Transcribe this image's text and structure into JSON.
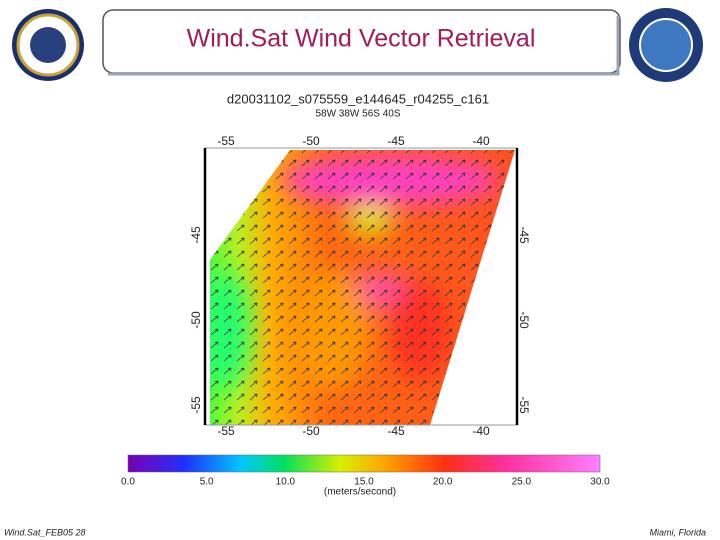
{
  "header": {
    "title": "Wind.Sat Wind Vector Retrieval"
  },
  "map": {
    "file": "d20031102_s075559_e144645_r04255_c161",
    "bounds": "58W  38W  56S  40S",
    "lon_labels": [
      "-55",
      "-50",
      "-45",
      "-40"
    ],
    "lat_labels": [
      "-45",
      "-50",
      "-55"
    ]
  },
  "colorbar": {
    "labels": [
      "0.0",
      "5.0",
      "10.0",
      "15.0",
      "20.0",
      "25.0",
      "30.0"
    ],
    "unit": "(meters/second)"
  },
  "footer": {
    "left": "Wind.Sat_FEB05 28",
    "right": "Miami, Florida"
  }
}
